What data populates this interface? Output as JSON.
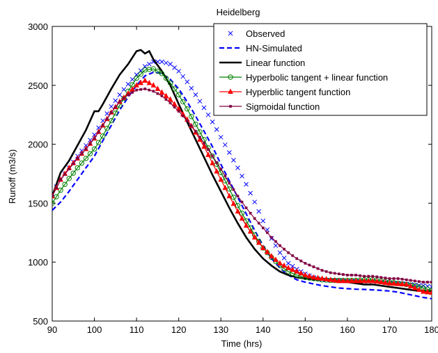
{
  "chart_data": {
    "type": "line",
    "title": "Heidelberg",
    "xlabel": "Time (hrs)",
    "ylabel": "Runoff (m3/s)",
    "xlim": [
      90,
      180
    ],
    "ylim": [
      500,
      3000
    ],
    "xticks": [
      90,
      100,
      110,
      120,
      130,
      140,
      150,
      160,
      170,
      180
    ],
    "yticks": [
      500,
      1000,
      1500,
      2000,
      2500,
      3000
    ],
    "grid": false,
    "legend_position": "top-right",
    "series": [
      {
        "name": "Observed",
        "color": "#0000ff",
        "style": "marker-x",
        "x": [
          90,
          92,
          94,
          96,
          98,
          100,
          102,
          104,
          106,
          108,
          110,
          112,
          114,
          116,
          118,
          120,
          122,
          124,
          126,
          128,
          130,
          132,
          134,
          136,
          138,
          140,
          142,
          144,
          146,
          148,
          150,
          152,
          154,
          156,
          158,
          160,
          162,
          164,
          166,
          168,
          170,
          172,
          174,
          176,
          178,
          180
        ],
        "y": [
          1580,
          1700,
          1800,
          1900,
          1990,
          2080,
          2200,
          2320,
          2420,
          2510,
          2590,
          2660,
          2700,
          2700,
          2680,
          2620,
          2530,
          2420,
          2310,
          2190,
          2060,
          1930,
          1800,
          1660,
          1510,
          1350,
          1200,
          1080,
          990,
          940,
          900,
          870,
          850,
          845,
          845,
          840,
          840,
          838,
          838,
          830,
          825,
          820,
          815,
          805,
          800,
          790
        ]
      },
      {
        "name": "HN-Simulated",
        "color": "#0000ff",
        "style": "dashed",
        "x": [
          90,
          92,
          94,
          96,
          98,
          100,
          102,
          104,
          106,
          108,
          110,
          112,
          114,
          116,
          118,
          120,
          122,
          124,
          126,
          128,
          130,
          132,
          134,
          136,
          138,
          140,
          142,
          144,
          146,
          148,
          150,
          152,
          154,
          156,
          158,
          160,
          162,
          164,
          166,
          168,
          170,
          172,
          174,
          176,
          178,
          180
        ],
        "y": [
          1440,
          1510,
          1600,
          1700,
          1800,
          1900,
          2030,
          2160,
          2290,
          2400,
          2500,
          2580,
          2610,
          2600,
          2550,
          2470,
          2360,
          2240,
          2110,
          1980,
          1830,
          1690,
          1550,
          1410,
          1270,
          1140,
          1030,
          950,
          890,
          850,
          830,
          815,
          800,
          790,
          780,
          775,
          770,
          768,
          765,
          760,
          755,
          745,
          730,
          715,
          700,
          690
        ]
      },
      {
        "name": "Linear function",
        "color": "#000000",
        "style": "solid-thick",
        "x": [
          90,
          92,
          94,
          96,
          98,
          100,
          101,
          102,
          104,
          106,
          108,
          110,
          111,
          112,
          113,
          114,
          116,
          118,
          120,
          122,
          124,
          126,
          128,
          130,
          132,
          134,
          136,
          138,
          140,
          142,
          144,
          146,
          148,
          150,
          152,
          154,
          156,
          158,
          160,
          162,
          164,
          166,
          168,
          170,
          172,
          174,
          176,
          178,
          180
        ],
        "y": [
          1560,
          1760,
          1860,
          1990,
          2120,
          2280,
          2280,
          2340,
          2470,
          2590,
          2680,
          2790,
          2800,
          2770,
          2790,
          2720,
          2620,
          2500,
          2340,
          2190,
          2040,
          1890,
          1740,
          1600,
          1460,
          1330,
          1210,
          1110,
          1030,
          970,
          920,
          890,
          870,
          860,
          850,
          850,
          850,
          840,
          830,
          820,
          810,
          810,
          800,
          790,
          780,
          770,
          760,
          755,
          755
        ]
      },
      {
        "name": "Hyperbolic tangent + linear function",
        "color": "#008000",
        "style": "marker-circle",
        "x": [
          90,
          92,
          94,
          96,
          98,
          100,
          102,
          104,
          106,
          108,
          110,
          112,
          114,
          116,
          118,
          120,
          122,
          124,
          126,
          128,
          130,
          132,
          134,
          136,
          138,
          140,
          142,
          144,
          146,
          148,
          150,
          152,
          154,
          156,
          158,
          160,
          162,
          164,
          166,
          168,
          170,
          172,
          174,
          176,
          178,
          180
        ],
        "y": [
          1500,
          1610,
          1710,
          1800,
          1880,
          1960,
          2070,
          2200,
          2330,
          2450,
          2560,
          2630,
          2640,
          2600,
          2520,
          2420,
          2300,
          2170,
          2040,
          1900,
          1760,
          1620,
          1480,
          1350,
          1230,
          1120,
          1040,
          970,
          920,
          890,
          870,
          860,
          850,
          845,
          845,
          845,
          845,
          850,
          850,
          840,
          830,
          820,
          810,
          800,
          780,
          760
        ]
      },
      {
        "name": "Hyperblic tangent function",
        "color": "#ff0000",
        "style": "marker-triangle",
        "x": [
          90,
          92,
          94,
          96,
          98,
          100,
          102,
          104,
          106,
          108,
          110,
          112,
          114,
          116,
          118,
          120,
          122,
          124,
          126,
          128,
          130,
          132,
          134,
          136,
          138,
          140,
          142,
          144,
          146,
          148,
          150,
          152,
          154,
          156,
          158,
          160,
          162,
          164,
          166,
          168,
          170,
          172,
          174,
          176,
          178,
          180
        ],
        "y": [
          1560,
          1700,
          1800,
          1880,
          1960,
          2050,
          2160,
          2270,
          2360,
          2430,
          2500,
          2540,
          2500,
          2440,
          2380,
          2300,
          2210,
          2100,
          1980,
          1840,
          1700,
          1560,
          1430,
          1310,
          1210,
          1120,
          1050,
          990,
          950,
          920,
          890,
          870,
          860,
          850,
          840,
          840,
          840,
          840,
          840,
          830,
          820,
          815,
          810,
          780,
          750,
          740
        ]
      },
      {
        "name": "Sigmoidal function",
        "color": "#800040",
        "style": "marker-square",
        "x": [
          90,
          92,
          94,
          96,
          98,
          100,
          102,
          104,
          106,
          108,
          110,
          112,
          114,
          116,
          118,
          120,
          122,
          124,
          126,
          128,
          130,
          132,
          134,
          136,
          138,
          140,
          142,
          144,
          146,
          148,
          150,
          152,
          154,
          156,
          158,
          160,
          162,
          164,
          166,
          168,
          170,
          172,
          174,
          176,
          178,
          180
        ],
        "y": [
          1560,
          1700,
          1790,
          1880,
          1960,
          2050,
          2160,
          2270,
          2360,
          2420,
          2460,
          2470,
          2450,
          2410,
          2350,
          2280,
          2200,
          2110,
          2010,
          1900,
          1790,
          1670,
          1560,
          1460,
          1370,
          1290,
          1210,
          1140,
          1080,
          1030,
          990,
          960,
          930,
          910,
          900,
          890,
          890,
          880,
          880,
          870,
          860,
          860,
          850,
          840,
          830,
          830
        ]
      }
    ]
  }
}
